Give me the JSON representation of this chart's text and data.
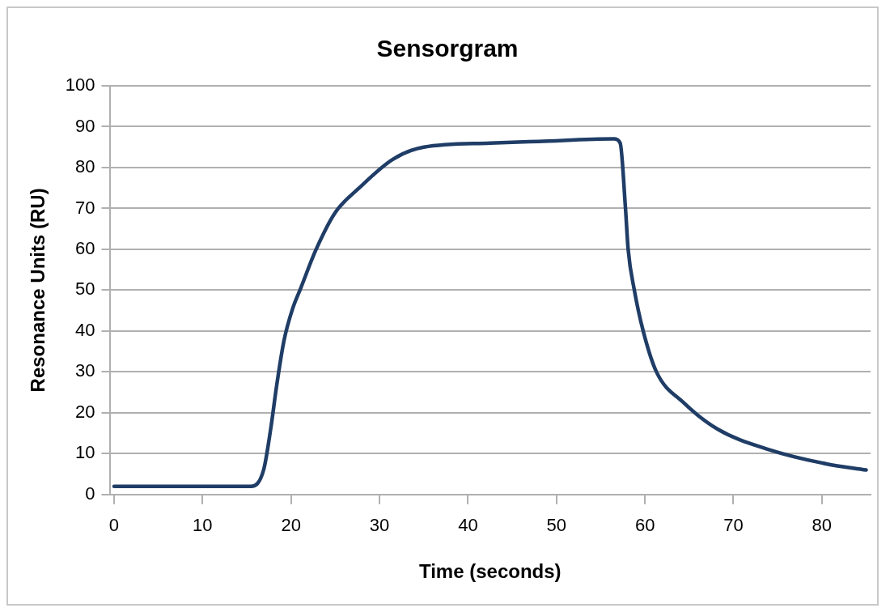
{
  "chart_data": {
    "type": "line",
    "title": "Sensorgram",
    "xlabel": "Time (seconds)",
    "ylabel": "Resonance Units (RU)",
    "xlim": [
      -0.5,
      85.5
    ],
    "xticks": [
      0,
      10,
      20,
      30,
      40,
      50,
      60,
      70,
      80
    ],
    "ylim": [
      0,
      100
    ],
    "yticks": [
      0,
      10,
      20,
      30,
      40,
      50,
      60,
      70,
      80,
      90,
      100
    ],
    "grid": "y",
    "legend": false,
    "marker": "none",
    "line_style": "solid",
    "series": [
      {
        "color": "#1f3d66",
        "x": [
          0,
          5,
          10,
          15.5,
          16.9,
          17.7,
          18.4,
          19.2,
          20.2,
          21.1,
          22.8,
          25,
          27.7,
          31.5,
          35,
          42.5,
          48,
          56.5,
          57.2,
          57.8,
          58.1,
          58.8,
          59.8,
          61.3,
          64.3,
          68.2,
          74,
          80.5,
          85
        ],
        "values": [
          2,
          2,
          2,
          2,
          6,
          16,
          27,
          37.6,
          45.6,
          50.5,
          59.8,
          69,
          75,
          82,
          85,
          86,
          86.4,
          87,
          86,
          70,
          60,
          50,
          40,
          30,
          22.6,
          16,
          11,
          7.5,
          6
        ]
      }
    ]
  }
}
